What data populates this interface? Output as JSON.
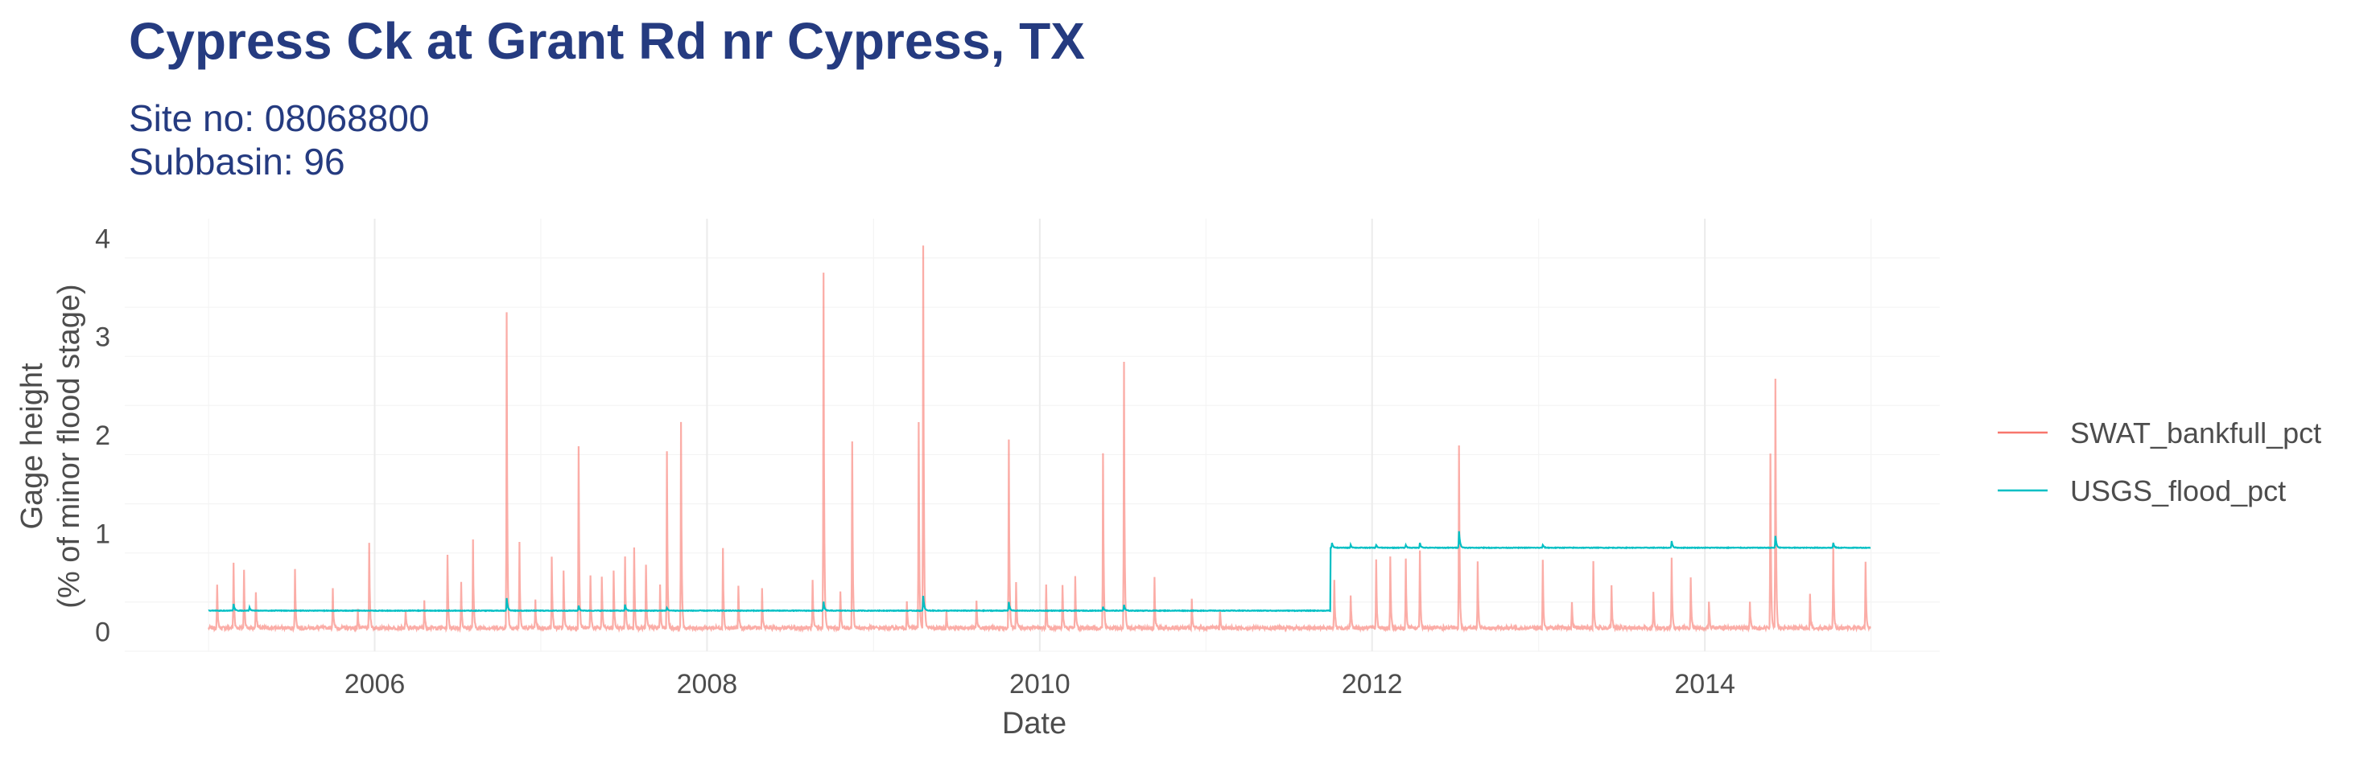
{
  "header": {
    "title": "Cypress Ck at Grant Rd nr Cypress, TX",
    "subtitle_line1": "Site no: 08068800",
    "subtitle_line2": "Subbasin: 96"
  },
  "chart_data": {
    "type": "line",
    "xlabel": "Date",
    "ylabel_line1": "Gage height",
    "ylabel_line2": "(% of minor flood stage)",
    "xlim": [
      "2004-07-01",
      "2015-06-01"
    ],
    "ylim": [
      -0.2,
      4.2
    ],
    "x_ticks": [
      {
        "date": "2006-01-01",
        "label": "2006"
      },
      {
        "date": "2008-01-01",
        "label": "2008"
      },
      {
        "date": "2010-01-01",
        "label": "2010"
      },
      {
        "date": "2012-01-01",
        "label": "2012"
      },
      {
        "date": "2014-01-01",
        "label": "2014"
      }
    ],
    "y_ticks": [
      {
        "value": 0,
        "label": "0"
      },
      {
        "value": 1,
        "label": "1"
      },
      {
        "value": 2,
        "label": "2"
      },
      {
        "value": 3,
        "label": "3"
      },
      {
        "value": 4,
        "label": "4"
      }
    ],
    "grid": true,
    "legend_position": "right",
    "series": [
      {
        "name": "SWAT_bankfull_pct",
        "color": "#f8766d",
        "baseline": 0.02,
        "date_range": [
          "2005-01-01",
          "2014-12-31"
        ],
        "peaks": [
          [
            "2005-01-20",
            0.45
          ],
          [
            "2005-02-25",
            0.68
          ],
          [
            "2005-03-20",
            0.62
          ],
          [
            "2005-04-15",
            0.4
          ],
          [
            "2005-07-10",
            0.63
          ],
          [
            "2005-10-01",
            0.43
          ],
          [
            "2005-11-25",
            0.2
          ],
          [
            "2005-12-20",
            0.88
          ],
          [
            "2006-03-10",
            0.2
          ],
          [
            "2006-04-20",
            0.3
          ],
          [
            "2006-06-10",
            0.78
          ],
          [
            "2006-07-10",
            0.5
          ],
          [
            "2006-08-05",
            0.92
          ],
          [
            "2006-10-18",
            3.23
          ],
          [
            "2006-11-15",
            0.88
          ],
          [
            "2006-12-20",
            0.3
          ],
          [
            "2007-01-25",
            0.76
          ],
          [
            "2007-02-20",
            0.62
          ],
          [
            "2007-03-25",
            1.88
          ],
          [
            "2007-04-20",
            0.55
          ],
          [
            "2007-05-15",
            0.55
          ],
          [
            "2007-06-10",
            0.6
          ],
          [
            "2007-07-05",
            0.75
          ],
          [
            "2007-07-25",
            0.85
          ],
          [
            "2007-08-20",
            0.65
          ],
          [
            "2007-09-20",
            0.45
          ],
          [
            "2007-10-05",
            1.82
          ],
          [
            "2007-11-05",
            2.12
          ],
          [
            "2008-02-05",
            0.85
          ],
          [
            "2008-03-10",
            0.45
          ],
          [
            "2008-05-01",
            0.42
          ],
          [
            "2008-08-20",
            0.5
          ],
          [
            "2008-09-13",
            3.65
          ],
          [
            "2008-10-20",
            0.4
          ],
          [
            "2008-11-15",
            1.92
          ],
          [
            "2009-03-15",
            0.3
          ],
          [
            "2009-04-10",
            2.1
          ],
          [
            "2009-04-20",
            3.92
          ],
          [
            "2009-06-10",
            0.2
          ],
          [
            "2009-08-15",
            0.3
          ],
          [
            "2009-10-25",
            1.94
          ],
          [
            "2009-11-10",
            0.5
          ],
          [
            "2010-01-15",
            0.45
          ],
          [
            "2010-02-20",
            0.45
          ],
          [
            "2010-03-20",
            0.55
          ],
          [
            "2010-05-20",
            1.79
          ],
          [
            "2010-07-05",
            2.72
          ],
          [
            "2010-09-10",
            0.52
          ],
          [
            "2010-12-01",
            0.3
          ],
          [
            "2011-02-01",
            0.2
          ],
          [
            "2011-10-10",
            0.5
          ],
          [
            "2011-11-15",
            0.35
          ],
          [
            "2012-01-10",
            0.72
          ],
          [
            "2012-02-10",
            0.75
          ],
          [
            "2012-03-15",
            0.72
          ],
          [
            "2012-04-15",
            0.82
          ],
          [
            "2012-07-10",
            1.88
          ],
          [
            "2012-08-20",
            0.68
          ],
          [
            "2013-01-10",
            0.7
          ],
          [
            "2013-03-15",
            0.3
          ],
          [
            "2013-05-01",
            0.7
          ],
          [
            "2013-06-10",
            0.45
          ],
          [
            "2013-09-10",
            0.4
          ],
          [
            "2013-10-20",
            0.75
          ],
          [
            "2013-12-01",
            0.55
          ],
          [
            "2014-01-10",
            0.3
          ],
          [
            "2014-04-10",
            0.3
          ],
          [
            "2014-05-25",
            1.8
          ],
          [
            "2014-06-05",
            2.55
          ],
          [
            "2014-08-20",
            0.35
          ],
          [
            "2014-10-10",
            0.9
          ],
          [
            "2014-12-20",
            0.7
          ]
        ]
      },
      {
        "name": "USGS_flood_pct",
        "color": "#00bfc4",
        "date_range": [
          "2005-01-01",
          "2014-12-31"
        ],
        "levels": [
          {
            "from": "2005-01-01",
            "to": "2011-09-30",
            "value": 0.21
          },
          {
            "from": "2011-10-01",
            "to": "2014-12-31",
            "value": 0.85
          }
        ],
        "peaks": [
          [
            "2005-02-25",
            0.28
          ],
          [
            "2005-04-01",
            0.24
          ],
          [
            "2006-10-18",
            0.34
          ],
          [
            "2007-03-25",
            0.26
          ],
          [
            "2007-07-05",
            0.27
          ],
          [
            "2007-10-05",
            0.24
          ],
          [
            "2008-09-13",
            0.3
          ],
          [
            "2009-04-20",
            0.36
          ],
          [
            "2009-10-25",
            0.3
          ],
          [
            "2010-05-20",
            0.25
          ],
          [
            "2010-07-05",
            0.27
          ],
          [
            "2011-10-05",
            0.9
          ],
          [
            "2011-11-15",
            0.88
          ],
          [
            "2012-01-10",
            0.88
          ],
          [
            "2012-03-15",
            0.88
          ],
          [
            "2012-04-15",
            0.9
          ],
          [
            "2012-07-10",
            1.02
          ],
          [
            "2013-01-10",
            0.88
          ],
          [
            "2013-10-20",
            0.92
          ],
          [
            "2014-06-05",
            0.97
          ],
          [
            "2014-10-10",
            0.9
          ]
        ]
      }
    ]
  }
}
